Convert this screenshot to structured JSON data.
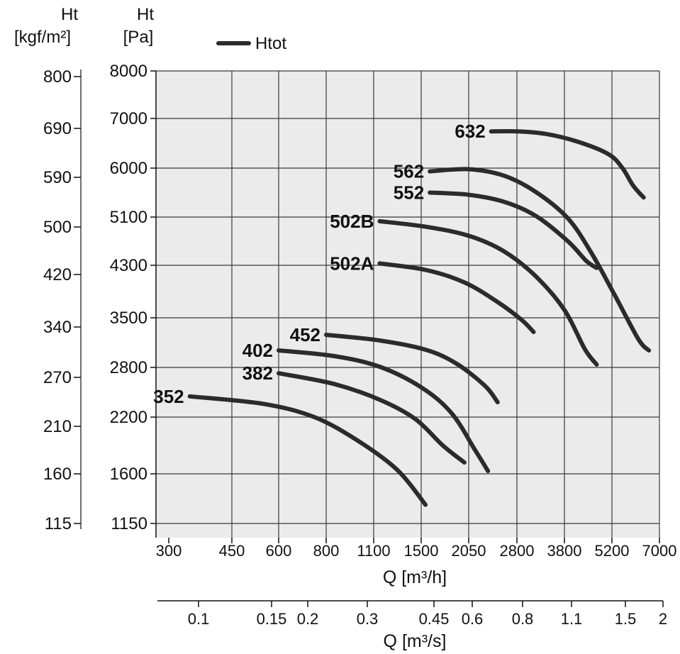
{
  "chart_data": {
    "type": "line",
    "header": {
      "left_axis_title": "Ht",
      "left_axis_unit": "[kgf/m²]",
      "right_axis_title": "Ht",
      "right_axis_unit": "[Pa]",
      "legend_label": "Htot"
    },
    "x_axis": {
      "label": "Q [m³/h]",
      "ticks": [
        "300",
        "450",
        "600",
        "800",
        "1100",
        "1500",
        "2050",
        "2800",
        "3800",
        "5200",
        "7000"
      ]
    },
    "x2_axis": {
      "label": "Q [m³/s]",
      "ticks": [
        "0.1",
        "0.15",
        "0.2",
        "0.3",
        "0.45",
        "0.6",
        "0.8",
        "1.1",
        "1.5",
        "2"
      ]
    },
    "y_axis_pa": {
      "ticks": [
        "1150",
        "1600",
        "2200",
        "2800",
        "3500",
        "4300",
        "5100",
        "6000",
        "7000",
        "8000"
      ]
    },
    "y_axis_kgf": {
      "ticks": [
        "115",
        "160",
        "210",
        "270",
        "340",
        "420",
        "500",
        "590",
        "690",
        "800"
      ]
    },
    "grid": true,
    "legend_position": "top",
    "series_color": "#2b2b2b",
    "grid_color": "#3a3a3a",
    "plot_background": "#ebebeb",
    "series": [
      {
        "name": "352",
        "points": [
          [
            350,
            2450
          ],
          [
            550,
            2360
          ],
          [
            750,
            2200
          ],
          [
            1000,
            1950
          ],
          [
            1300,
            1640
          ],
          [
            1550,
            1320
          ]
        ]
      },
      {
        "name": "382",
        "points": [
          [
            600,
            2730
          ],
          [
            850,
            2600
          ],
          [
            1150,
            2410
          ],
          [
            1450,
            2180
          ],
          [
            1750,
            1900
          ],
          [
            2000,
            1720
          ]
        ]
      },
      {
        "name": "402",
        "points": [
          [
            600,
            3040
          ],
          [
            850,
            2960
          ],
          [
            1150,
            2810
          ],
          [
            1500,
            2560
          ],
          [
            1850,
            2250
          ],
          [
            2150,
            1850
          ],
          [
            2350,
            1630
          ]
        ]
      },
      {
        "name": "452",
        "points": [
          [
            800,
            3260
          ],
          [
            1150,
            3180
          ],
          [
            1550,
            3050
          ],
          [
            1900,
            2860
          ],
          [
            2300,
            2580
          ],
          [
            2500,
            2380
          ]
        ]
      },
      {
        "name": "502A",
        "points": [
          [
            1150,
            4330
          ],
          [
            1550,
            4230
          ],
          [
            2000,
            4040
          ],
          [
            2500,
            3740
          ],
          [
            2900,
            3470
          ],
          [
            3150,
            3300
          ]
        ]
      },
      {
        "name": "502B",
        "points": [
          [
            1150,
            5030
          ],
          [
            1550,
            4940
          ],
          [
            2050,
            4790
          ],
          [
            2600,
            4530
          ],
          [
            3200,
            4130
          ],
          [
            3800,
            3620
          ],
          [
            4400,
            3060
          ],
          [
            4750,
            2840
          ]
        ]
      },
      {
        "name": "552",
        "points": [
          [
            1600,
            5550
          ],
          [
            2050,
            5510
          ],
          [
            2600,
            5380
          ],
          [
            3200,
            5120
          ],
          [
            3900,
            4700
          ],
          [
            4450,
            4370
          ],
          [
            4750,
            4260
          ]
        ]
      },
      {
        "name": "562",
        "points": [
          [
            1600,
            5940
          ],
          [
            2050,
            5980
          ],
          [
            2600,
            5860
          ],
          [
            3200,
            5560
          ],
          [
            3900,
            5080
          ],
          [
            4600,
            4500
          ],
          [
            5300,
            3850
          ],
          [
            6200,
            3200
          ],
          [
            6600,
            3040
          ]
        ]
      },
      {
        "name": "632",
        "points": [
          [
            2400,
            6740
          ],
          [
            2800,
            6740
          ],
          [
            3400,
            6690
          ],
          [
            4200,
            6530
          ],
          [
            5100,
            6280
          ],
          [
            5600,
            6000
          ],
          [
            6000,
            5680
          ],
          [
            6400,
            5460
          ]
        ]
      }
    ]
  }
}
